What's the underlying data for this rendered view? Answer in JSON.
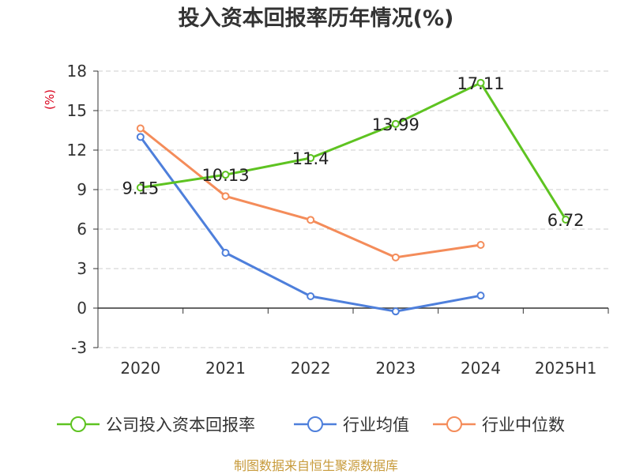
{
  "chart_data": {
    "type": "line",
    "title": "投入资本回报率历年情况(%)",
    "ylabel": "(%)",
    "categories": [
      "2020",
      "2021",
      "2022",
      "2023",
      "2024",
      "2025H1"
    ],
    "ylim": [
      -3,
      18
    ],
    "yticks": [
      "18",
      "15",
      "12",
      "9",
      "6",
      "3",
      "0",
      "-3"
    ],
    "grid": "horizontal dashed",
    "legend_position": "bottom",
    "series": [
      {
        "name": "公司投入资本回报率",
        "color": "#5ec321",
        "values": [
          9.15,
          10.13,
          11.4,
          13.99,
          17.11,
          6.72
        ],
        "labels": [
          "9.15",
          "10.13",
          "11.4",
          "13.99",
          "17.11",
          "6.72"
        ]
      },
      {
        "name": "行业均值",
        "color": "#4e7fdb",
        "values": [
          13.0,
          4.2,
          0.9,
          -0.25,
          0.95,
          null
        ]
      },
      {
        "name": "行业中位数",
        "color": "#f48c5a",
        "values": [
          13.65,
          8.5,
          6.7,
          3.85,
          4.8,
          null
        ]
      }
    ],
    "source": "制图数据来自恒生聚源数据库"
  }
}
